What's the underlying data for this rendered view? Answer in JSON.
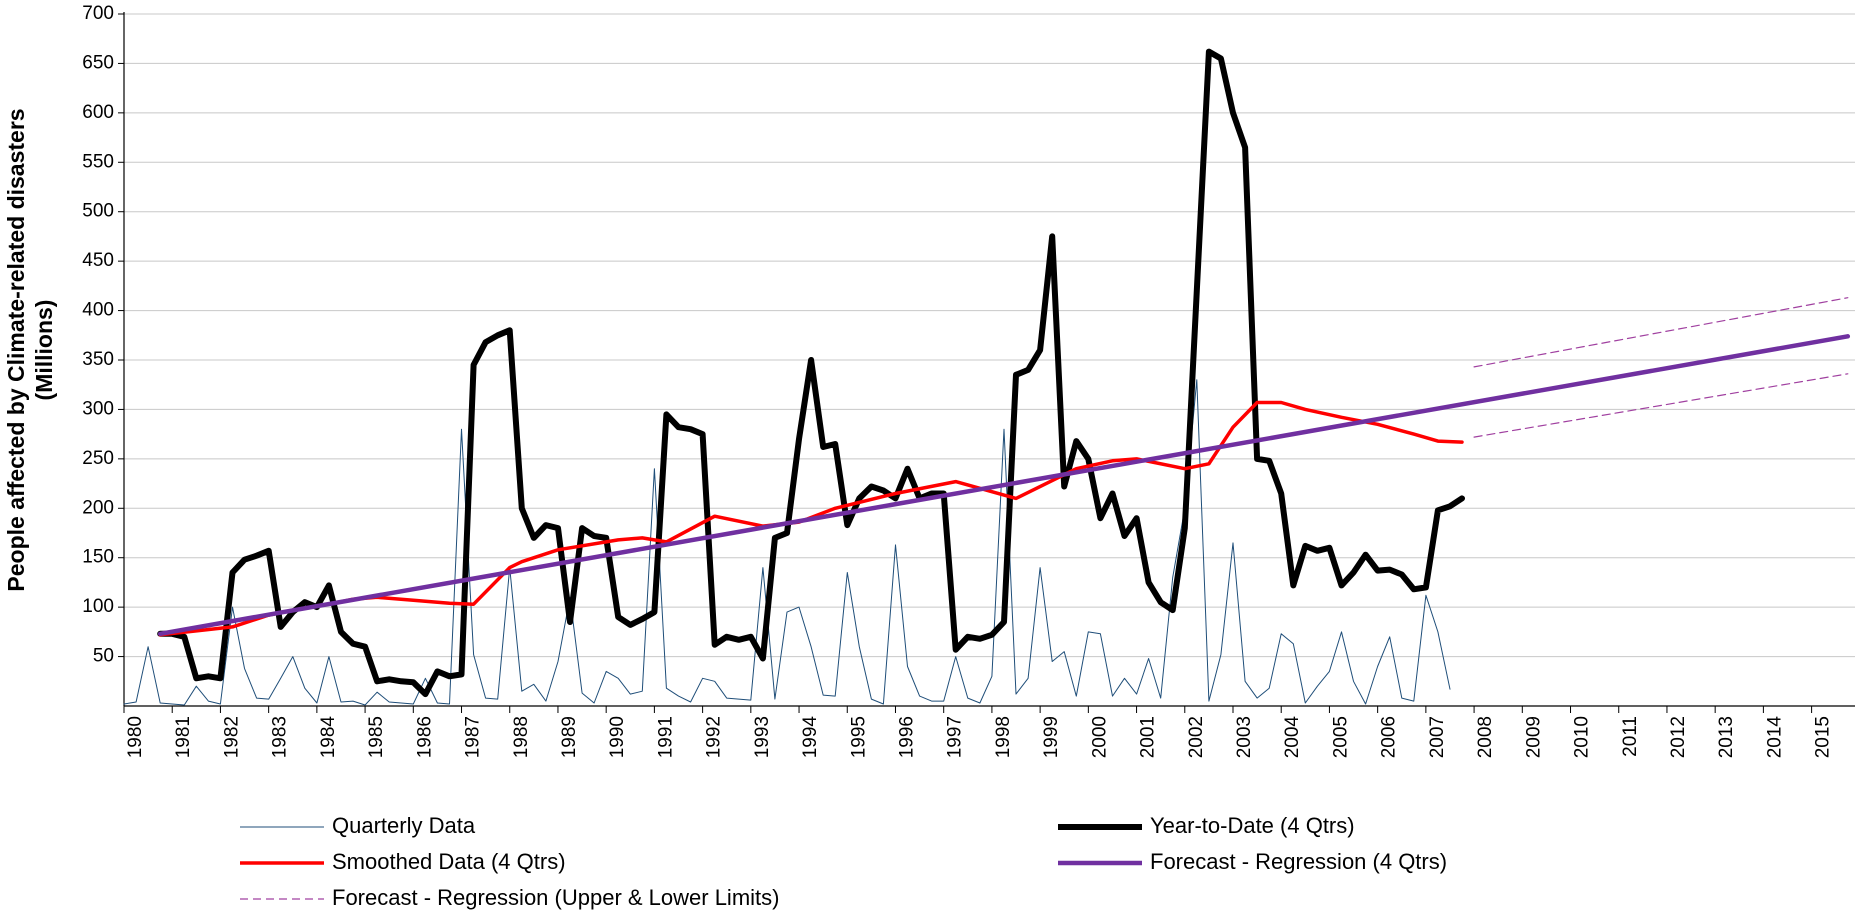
{
  "chart_data": {
    "type": "line",
    "ylabel": [
      "People affected by Climate-related disasters",
      "(Millions)"
    ],
    "xlim": [
      1980,
      2015.9
    ],
    "xticks": [
      1980,
      1981,
      1982,
      1983,
      1984,
      1985,
      1986,
      1987,
      1988,
      1989,
      1990,
      1991,
      1992,
      1993,
      1994,
      1995,
      1996,
      1997,
      1998,
      1999,
      2000,
      2001,
      2002,
      2003,
      2004,
      2005,
      2006,
      2007,
      2008,
      2009,
      2010,
      2011,
      2012,
      2013,
      2014,
      2015
    ],
    "ylim": [
      0,
      700
    ],
    "yticks": [
      50,
      100,
      150,
      200,
      250,
      300,
      350,
      400,
      450,
      500,
      550,
      600,
      650,
      700
    ],
    "grid": true,
    "x": [
      1980,
      1980.25,
      1980.5,
      1980.75,
      1981,
      1981.25,
      1981.5,
      1981.75,
      1982,
      1982.25,
      1982.5,
      1982.75,
      1983,
      1983.25,
      1983.5,
      1983.75,
      1984,
      1984.25,
      1984.5,
      1984.75,
      1985,
      1985.25,
      1985.5,
      1985.75,
      1986,
      1986.25,
      1986.5,
      1986.75,
      1987,
      1987.25,
      1987.5,
      1987.75,
      1988,
      1988.25,
      1988.5,
      1988.75,
      1989,
      1989.25,
      1989.5,
      1989.75,
      1990,
      1990.25,
      1990.5,
      1990.75,
      1991,
      1991.25,
      1991.5,
      1991.75,
      1992,
      1992.25,
      1992.5,
      1992.75,
      1993,
      1993.25,
      1993.5,
      1993.75,
      1994,
      1994.25,
      1994.5,
      1994.75,
      1995,
      1995.25,
      1995.5,
      1995.75,
      1996,
      1996.25,
      1996.5,
      1996.75,
      1997,
      1997.25,
      1997.5,
      1997.75,
      1998,
      1998.25,
      1998.5,
      1998.75,
      1999,
      1999.25,
      1999.5,
      1999.75,
      2000,
      2000.25,
      2000.5,
      2000.75,
      2001,
      2001.25,
      2001.5,
      2001.75,
      2002,
      2002.25,
      2002.5,
      2002.75,
      2003,
      2003.25,
      2003.5,
      2003.75,
      2004,
      2004.25,
      2004.5,
      2004.75,
      2005,
      2005.25,
      2005.5,
      2005.75,
      2006,
      2006.25,
      2006.5,
      2006.75,
      2007,
      2007.25,
      2007.5,
      2007.75
    ],
    "series": [
      {
        "name": "Quarterly Data",
        "color": "#1f4e79",
        "width": 1,
        "values": [
          2,
          4,
          60,
          3,
          2,
          1,
          20,
          5,
          2,
          100,
          38,
          8,
          7,
          28,
          50,
          18,
          3,
          50,
          4,
          5,
          1,
          14,
          4,
          3,
          2,
          28,
          3,
          2,
          280,
          52,
          8,
          7,
          140,
          15,
          22,
          5,
          45,
          110,
          13,
          3,
          35,
          28,
          12,
          15,
          240,
          18,
          10,
          4,
          28,
          25,
          8,
          7,
          6,
          140,
          7,
          95,
          100,
          60,
          11,
          10,
          135,
          60,
          7,
          2,
          163,
          40,
          10,
          5,
          5,
          50,
          8,
          3,
          30,
          280,
          12,
          28,
          140,
          45,
          55,
          10,
          75,
          73,
          10,
          28,
          12,
          48,
          8,
          130,
          200,
          330,
          5,
          52,
          165,
          25,
          8,
          18,
          73,
          63,
          3,
          20,
          35,
          75,
          25,
          2,
          40,
          70,
          8,
          5,
          112,
          75,
          17,
          null
        ]
      },
      {
        "name": "Year-to-Date (4 Qtrs)",
        "color": "#000000",
        "width": 6,
        "values": [
          null,
          null,
          null,
          73,
          73,
          70,
          28,
          30,
          28,
          135,
          148,
          152,
          157,
          80,
          95,
          105,
          100,
          122,
          75,
          63,
          60,
          25,
          27,
          25,
          24,
          12,
          35,
          30,
          32,
          345,
          368,
          375,
          380,
          200,
          170,
          183,
          180,
          85,
          180,
          172,
          170,
          90,
          82,
          88,
          95,
          295,
          282,
          280,
          275,
          62,
          70,
          67,
          70,
          48,
          170,
          175,
          270,
          350,
          262,
          265,
          183,
          210,
          222,
          218,
          210,
          240,
          210,
          215,
          215,
          57,
          70,
          68,
          72,
          85,
          335,
          340,
          360,
          475,
          222,
          268,
          250,
          190,
          215,
          172,
          190,
          125,
          105,
          97,
          180,
          420,
          662,
          655,
          600,
          565,
          250,
          248,
          215,
          122,
          162,
          157,
          160,
          122,
          135,
          153,
          137,
          138,
          133,
          118,
          120,
          198,
          202,
          210
        ]
      },
      {
        "name": "Smoothed Data (4 Qtrs)",
        "color": "#ff0000",
        "width": 3.5,
        "x": [
          1980.75,
          1981.5,
          1982.25,
          1983,
          1983.5,
          1984.25,
          1984.75,
          1985.25,
          1986,
          1986.75,
          1987.25,
          1988,
          1988.25,
          1989,
          1990.25,
          1990.75,
          1991.25,
          1992.25,
          1993.25,
          1994,
          1994.75,
          1996,
          1997.25,
          1998.5,
          1999.75,
          2000.5,
          2001,
          2002,
          2002.5,
          2003,
          2003.5,
          2004,
          2004.5,
          2005.25,
          2006,
          2006.75,
          2007.25,
          2007.75
        ],
        "values": [
          72,
          76,
          80,
          92,
          97,
          103,
          108,
          110,
          107,
          104,
          103,
          140,
          146,
          158,
          168,
          170,
          166,
          192,
          182,
          186,
          200,
          215,
          227,
          210,
          240,
          248,
          250,
          240,
          245,
          282,
          307,
          307,
          300,
          292,
          285,
          275,
          268,
          267
        ]
      },
      {
        "name": "Forecast - Regression (4 Qtrs)",
        "color": "#7030a0",
        "width": 4.5,
        "x": [
          1980.75,
          2015.75
        ],
        "values": [
          73,
          374
        ]
      },
      {
        "name": "Forecast - Regression (Upper & Lower Limits)",
        "color": "#a040a0",
        "width": 1.2,
        "dash": true,
        "x": [
          2008,
          2015.75
        ],
        "upper": [
          343,
          413
        ],
        "lower": [
          272,
          336
        ]
      }
    ]
  }
}
